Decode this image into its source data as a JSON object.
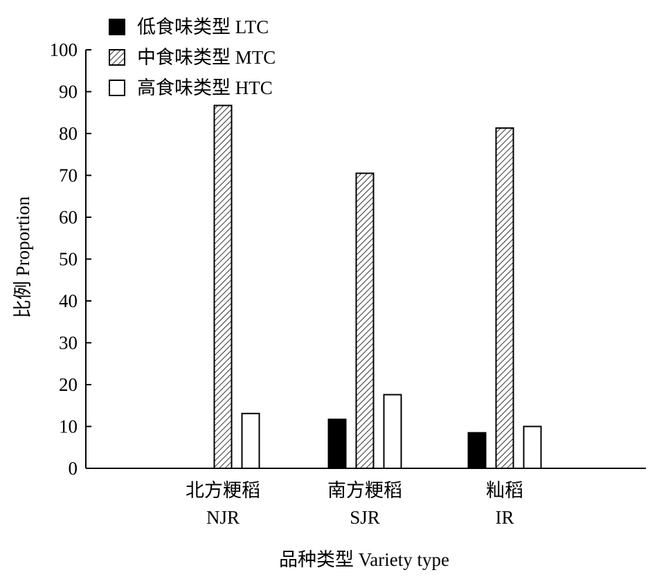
{
  "chart_data": {
    "type": "bar",
    "categories": [
      {
        "zh": "北方粳稻",
        "en": "NJR"
      },
      {
        "zh": "南方粳稻",
        "en": "SJR"
      },
      {
        "zh": "籼稻",
        "en": "IR"
      }
    ],
    "series": [
      {
        "name": "低食味类型 LTC",
        "pattern": "solid",
        "color": "#000000",
        "values": [
          0,
          11.7,
          8.5
        ]
      },
      {
        "name": "中食味类型 MTC",
        "pattern": "hatch",
        "color": "#000000",
        "values": [
          86.7,
          70.5,
          81.3
        ]
      },
      {
        "name": "高食味类型 HTC",
        "pattern": "empty",
        "color": "#ffffff",
        "values": [
          13.1,
          17.6,
          10.0
        ]
      }
    ],
    "ylim": [
      0,
      100
    ],
    "yticks": [
      0,
      10,
      20,
      30,
      40,
      50,
      60,
      70,
      80,
      90,
      100
    ],
    "xlabel": "品种类型 Variety type",
    "ylabel": "比例 Proportion",
    "legend_position": "top-left",
    "grid": false
  }
}
